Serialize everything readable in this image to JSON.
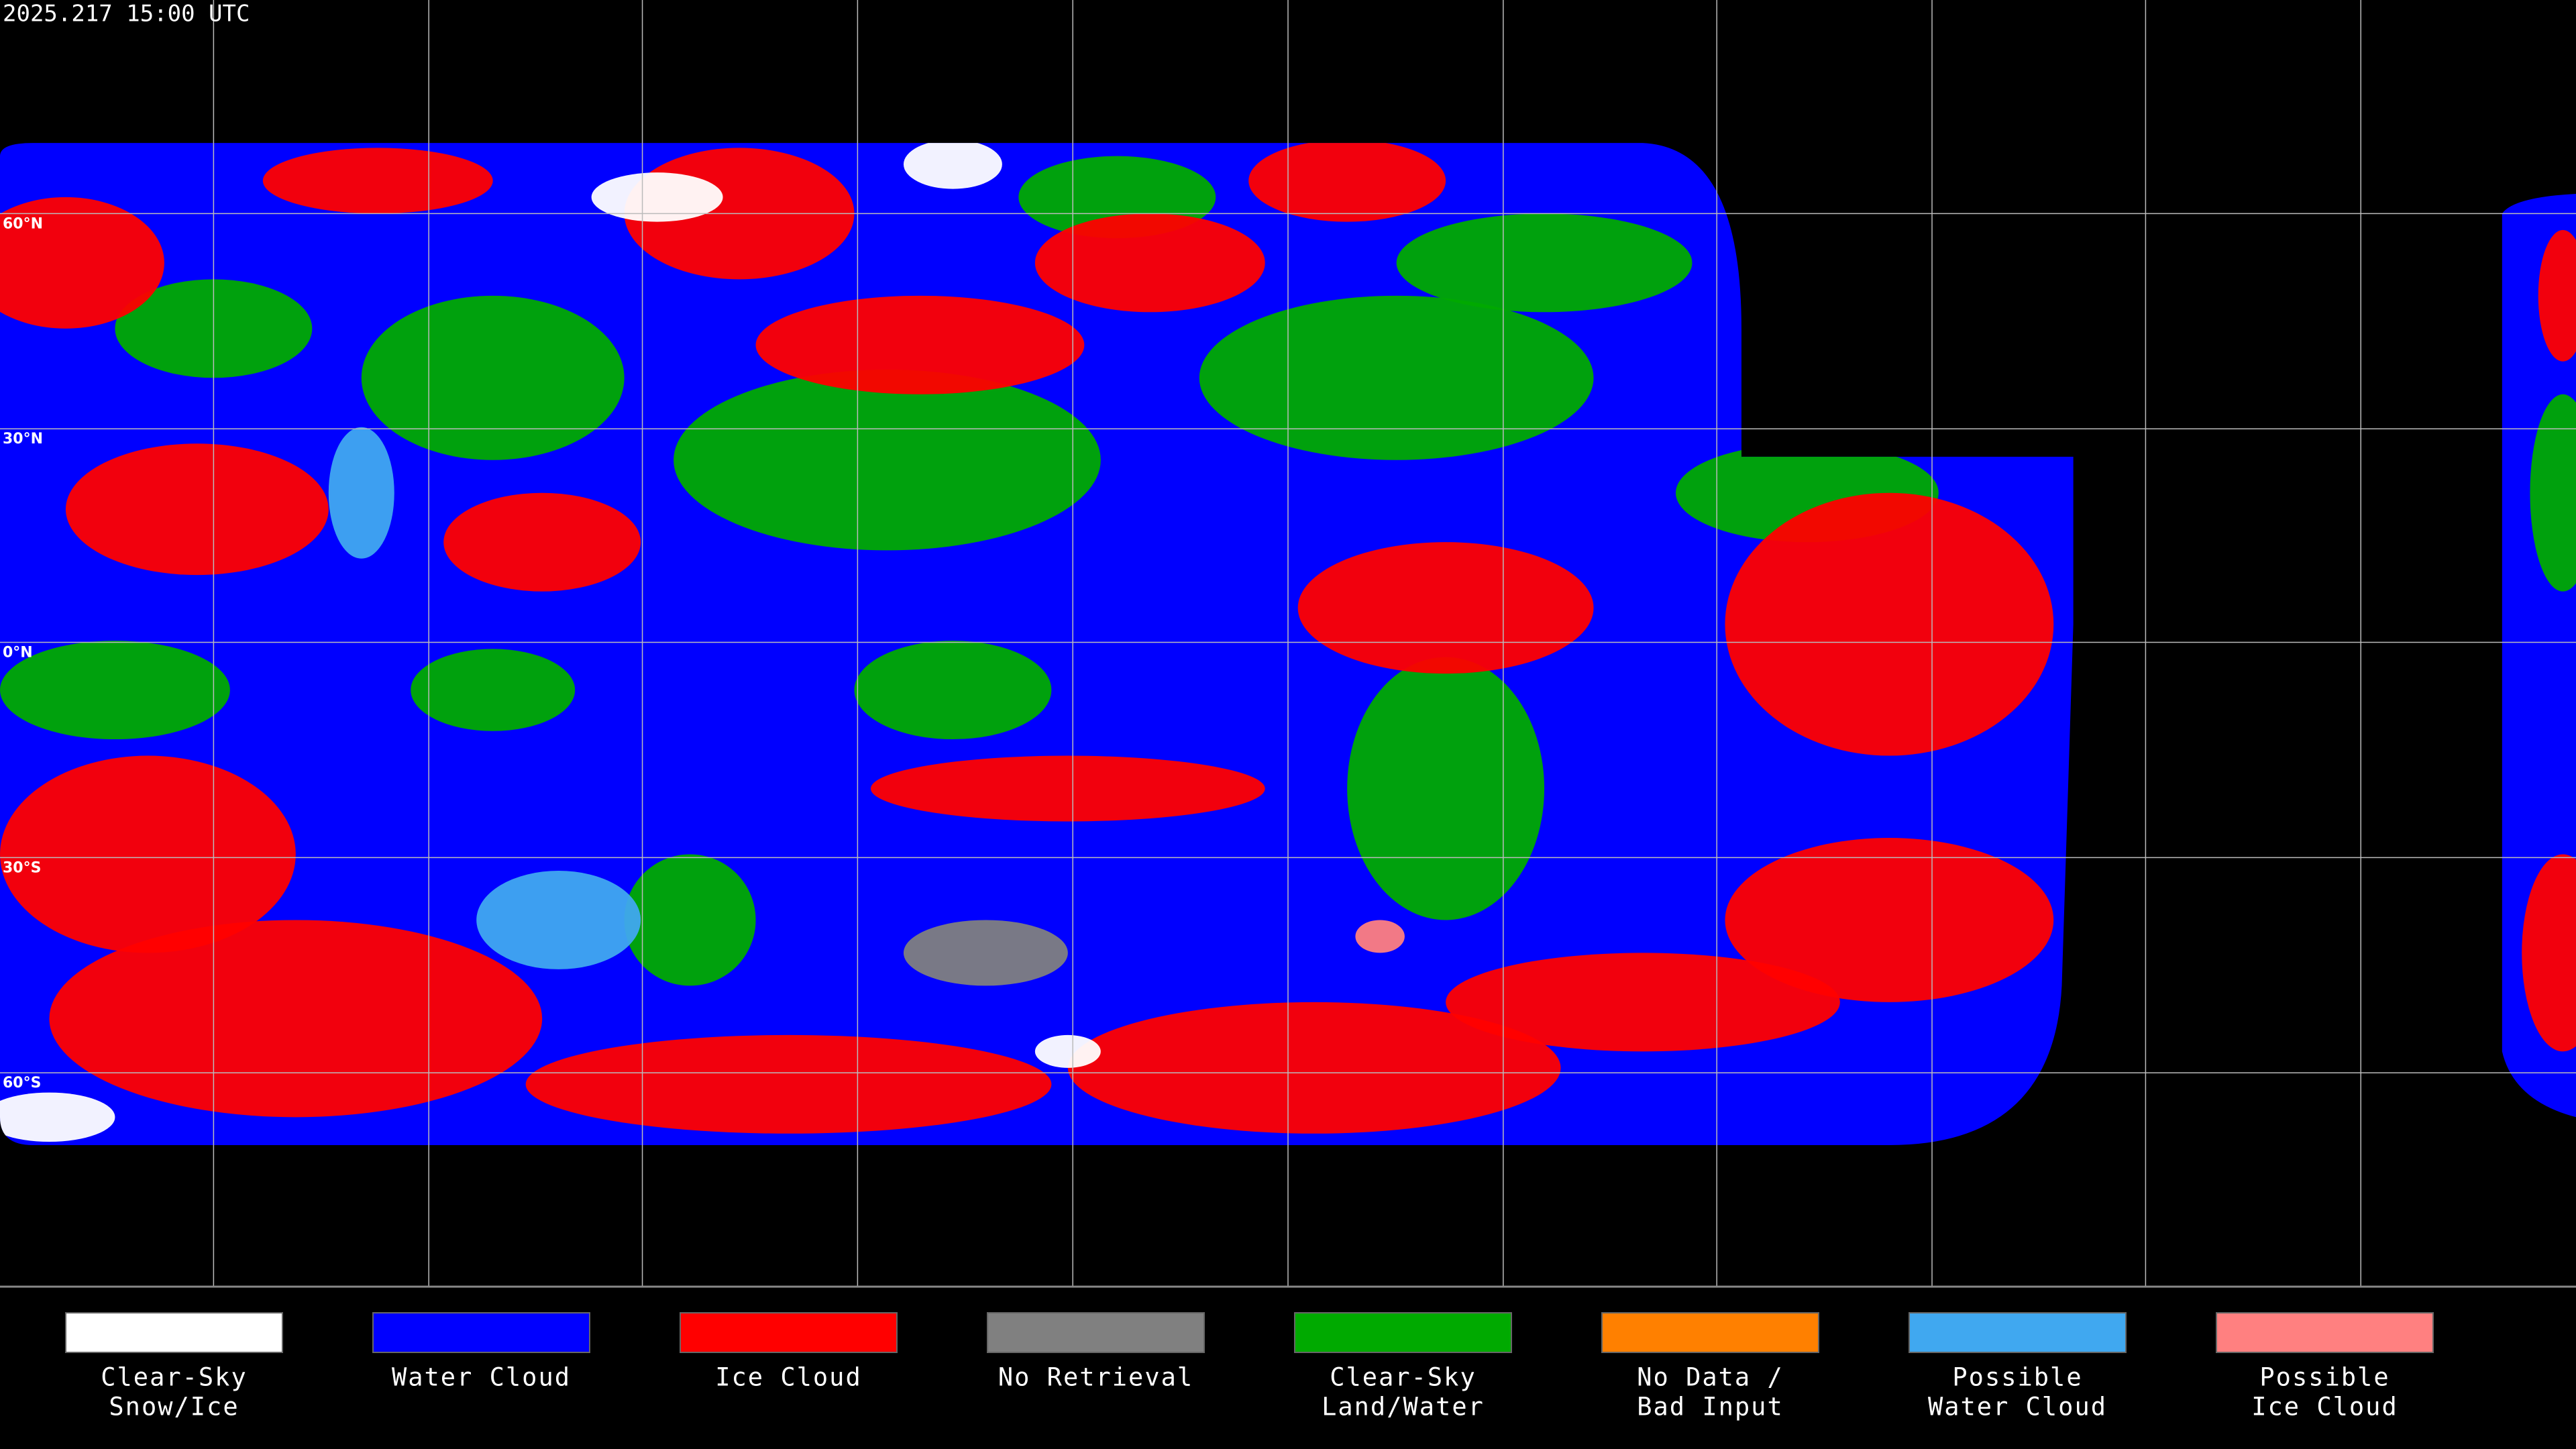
{
  "title": "2025.217 15:00 UTC",
  "latitude_labels": [
    "60°N",
    "30°N",
    "0°N",
    "30°S",
    "60°S"
  ],
  "legend": {
    "items": [
      {
        "label": [
          "Clear-Sky",
          "Snow/Ice"
        ],
        "color": "#ffffff"
      },
      {
        "label": [
          "Water Cloud"
        ],
        "color": "#0000ff"
      },
      {
        "label": [
          "Ice Cloud"
        ],
        "color": "#ff0000"
      },
      {
        "label": [
          "No Retrieval"
        ],
        "color": "#808080"
      },
      {
        "label": [
          "Clear-Sky",
          "Land/Water"
        ],
        "color": "#00aa00"
      },
      {
        "label": [
          "No Data /",
          "Bad Input"
        ],
        "color": "#ff8000"
      },
      {
        "label": [
          "Possible",
          "Water Cloud"
        ],
        "color": "#40a8f0"
      },
      {
        "label": [
          "Possible",
          "Ice Cloud"
        ],
        "color": "#ff8080"
      }
    ]
  }
}
